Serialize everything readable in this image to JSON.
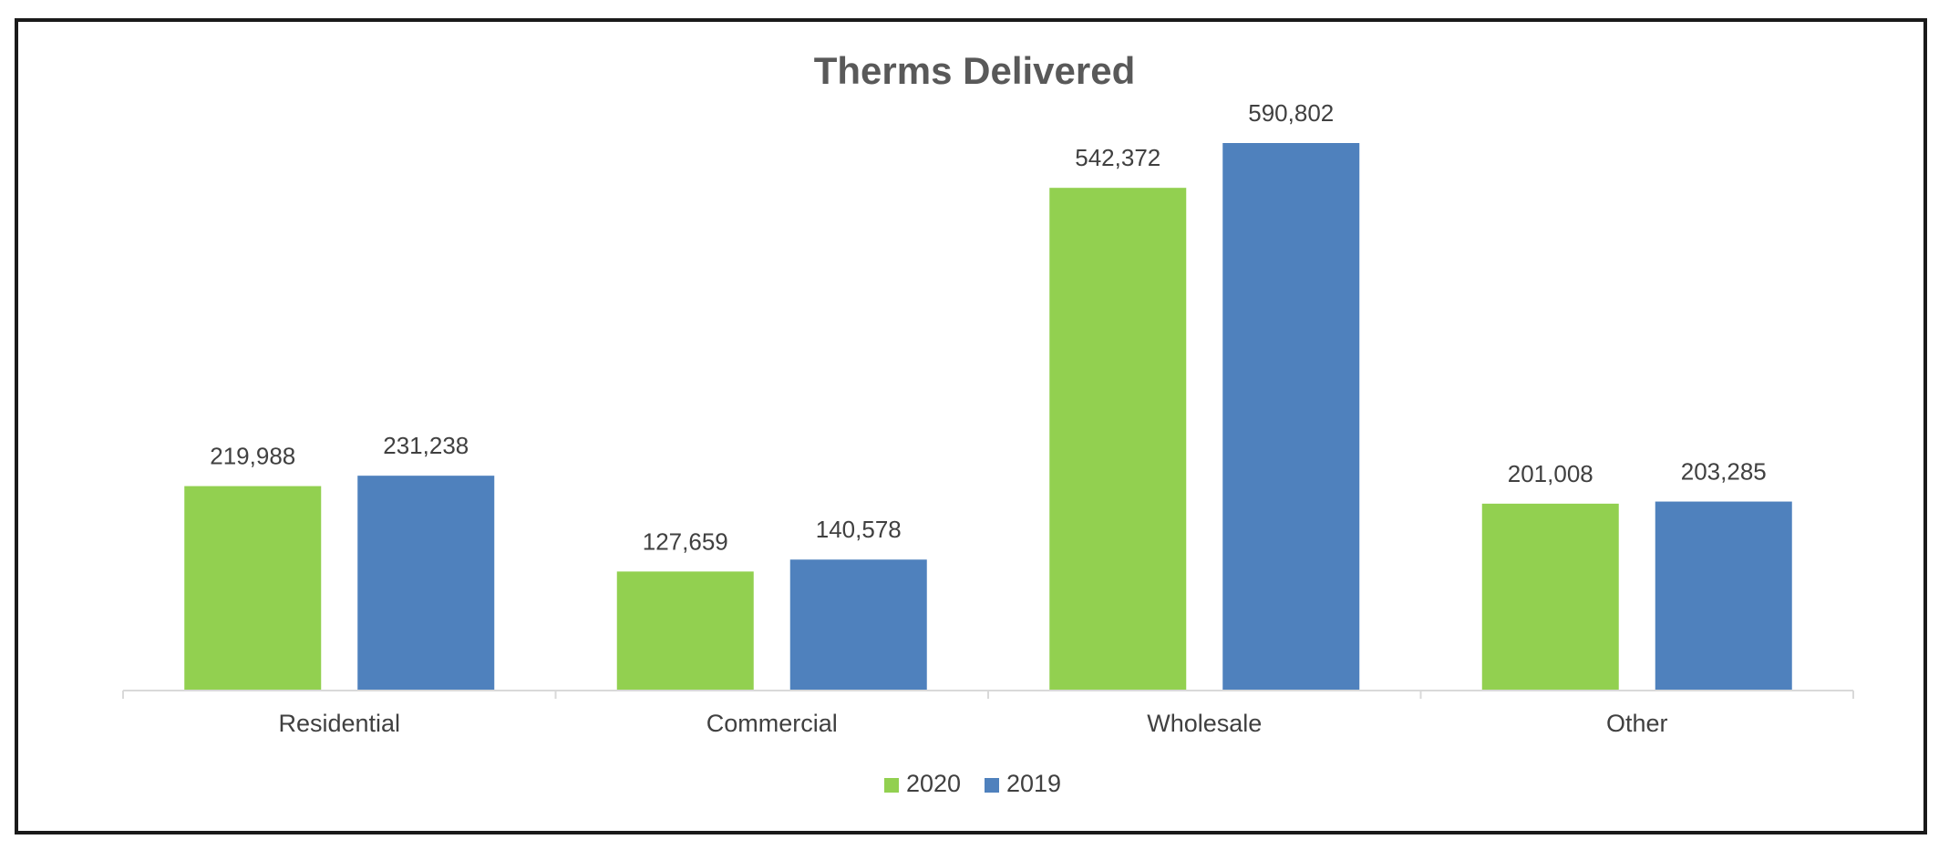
{
  "chart_data": {
    "type": "bar",
    "title": "Therms Delivered",
    "xlabel": "",
    "ylabel": "",
    "categories": [
      "Residential",
      "Commercial",
      "Wholesale",
      "Other"
    ],
    "series": [
      {
        "name": "2020",
        "color": "#92D050",
        "values": [
          219988,
          127659,
          542372,
          201008
        ],
        "labels": [
          "219,988",
          "127,659",
          "542,372",
          "201,008"
        ]
      },
      {
        "name": "2019",
        "color": "#4F81BD",
        "values": [
          231238,
          140578,
          590802,
          203285
        ],
        "labels": [
          "231,238",
          "140,578",
          "590,802",
          "203,285"
        ]
      }
    ],
    "ylim": [
      0,
      600000
    ],
    "grid": false,
    "legend_position": "bottom"
  }
}
